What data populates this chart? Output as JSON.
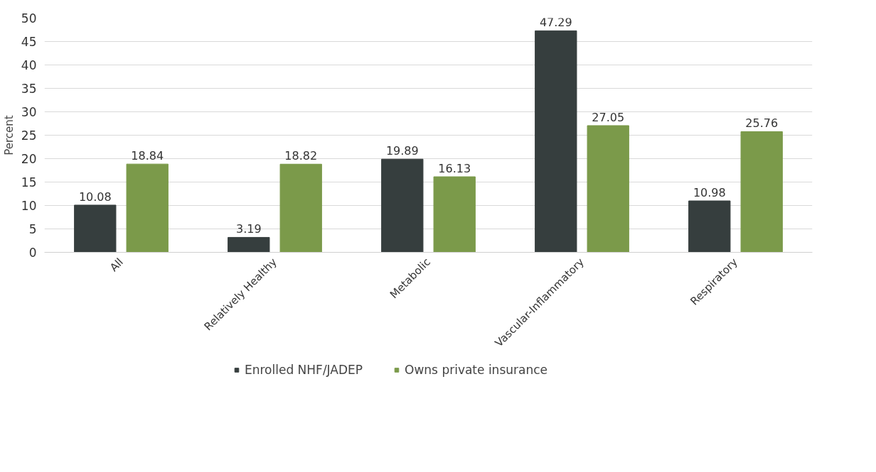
{
  "chart_data": {
    "type": "bar",
    "ylabel": "Percent",
    "categories": [
      "All",
      "Relatively Healthy",
      "Metabolic",
      "Vascular-Inflammatory",
      "Respiratory"
    ],
    "series": [
      {
        "name": "Enrolled NHF/JADEP",
        "color": "#363e3e",
        "values": [
          10.08,
          3.19,
          19.89,
          47.29,
          10.98
        ]
      },
      {
        "name": "Owns private insurance",
        "color": "#7b9a4a",
        "values": [
          18.84,
          18.82,
          16.13,
          27.05,
          25.76
        ]
      }
    ],
    "ylim": [
      0,
      50
    ],
    "yticks": [
      0,
      5,
      10,
      15,
      20,
      25,
      30,
      35,
      40,
      45,
      50
    ],
    "grid": "y",
    "legend": "bottom",
    "data_labels": true
  }
}
